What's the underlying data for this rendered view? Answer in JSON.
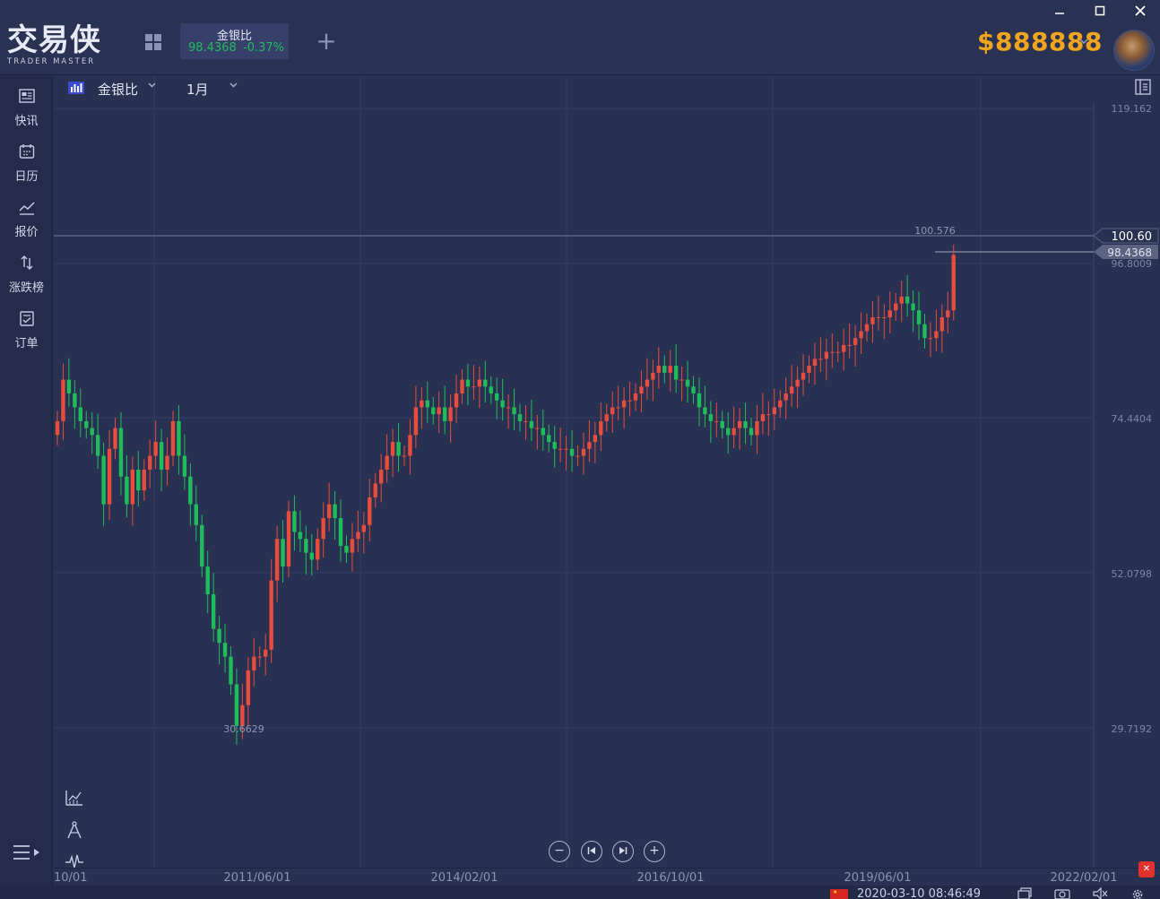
{
  "app": {
    "logo_text": "交易侠",
    "logo_subtext": "TRADER MASTER",
    "balance": "$888888"
  },
  "window_controls": [
    "minimize-icon",
    "maximize-icon",
    "close-icon"
  ],
  "active_tab": {
    "name": "金银比",
    "price": "98.4368",
    "change": "-0.37%",
    "color": "#1fbd5a"
  },
  "sidebar": {
    "items": [
      {
        "label": "快讯",
        "icon": "news-icon"
      },
      {
        "label": "日历",
        "icon": "calendar-icon"
      },
      {
        "label": "报价",
        "icon": "quote-icon"
      },
      {
        "label": "涨跌榜",
        "icon": "updown-icon"
      },
      {
        "label": "订单",
        "icon": "order-icon"
      }
    ]
  },
  "chart_toolbar": {
    "symbol": "金银比",
    "period": "1月"
  },
  "chart_data": {
    "type": "candlestick",
    "y_ticks": [
      "119.162",
      "96.8009",
      "74.4404",
      "52.0798",
      "29.7192"
    ],
    "y_tick_values": [
      119.162,
      96.8009,
      74.4404,
      52.0798,
      29.7192
    ],
    "x_ticks": [
      "10/01",
      "2011/06/01",
      "2014/02/01",
      "2016/10/01",
      "2019/06/01",
      "2022/02/01"
    ],
    "high_label": "100.576",
    "low_label": "30.6629",
    "last_price": "98.4368",
    "crosshair_price": "100.60",
    "up_color": "#e74c3c",
    "down_color": "#1fbd5a",
    "closes": [
      74,
      80,
      78,
      76,
      74,
      73,
      72,
      69,
      62,
      70,
      73,
      66,
      62,
      67,
      64,
      67,
      69,
      71,
      67,
      69,
      74,
      69,
      66,
      62,
      59,
      53,
      49,
      44,
      42,
      40,
      36,
      30,
      33,
      38,
      40,
      40,
      41,
      51,
      57,
      53,
      61,
      58,
      57,
      55,
      54,
      57,
      60,
      62,
      60,
      56,
      55,
      57,
      58,
      59,
      63,
      65,
      67,
      69,
      71,
      69,
      69,
      72,
      76,
      77,
      76,
      75,
      76,
      74,
      76,
      78,
      80,
      79,
      79,
      80,
      79,
      78,
      77,
      76,
      76,
      75,
      74,
      74,
      73,
      73,
      72,
      71,
      70,
      70,
      70,
      69,
      69,
      70,
      71,
      72,
      74,
      75,
      76,
      76,
      77,
      77,
      78,
      79,
      80,
      81,
      82,
      81,
      82,
      80,
      80,
      79,
      78,
      76,
      75,
      74,
      74,
      73,
      72,
      73,
      74,
      73,
      72,
      74,
      75,
      75,
      76,
      77,
      78,
      79,
      80,
      81,
      82,
      83,
      83,
      84,
      84,
      84,
      85,
      85,
      86,
      87,
      88,
      89,
      89,
      89,
      90,
      91,
      92,
      91,
      90,
      88,
      86,
      86,
      87,
      89,
      90,
      98
    ]
  },
  "statusbar": {
    "datetime": "2020-03-10 08:46:49"
  }
}
